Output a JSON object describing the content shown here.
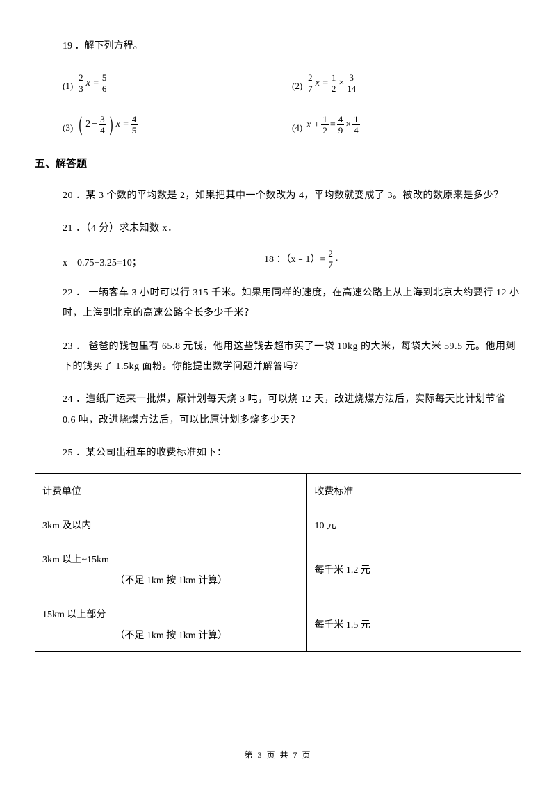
{
  "q19": {
    "label": "19 ．解下列方程。",
    "eq1": {
      "label": "(1)",
      "lhs_num": "2",
      "lhs_den": "3",
      "var": "x",
      "rhs_num": "5",
      "rhs_den": "6"
    },
    "eq2": {
      "label": "(2)",
      "lhs_num": "2",
      "lhs_den": "7",
      "var": "x",
      "mid_num": "1",
      "mid_den": "2",
      "rhs_num": "3",
      "rhs_den": "14"
    },
    "eq3": {
      "label": "(3)",
      "inner_a": "2",
      "inner_b_num": "3",
      "inner_b_den": "4",
      "var": "x",
      "rhs_num": "4",
      "rhs_den": "5"
    },
    "eq4": {
      "label": "(4)",
      "var": "x",
      "a_num": "1",
      "a_den": "2",
      "b_num": "4",
      "b_den": "9",
      "c_num": "1",
      "c_den": "4"
    }
  },
  "section5": "五、解答题",
  "q20": "20 ．某 3 个数的平均数是 2，如果把其中一个数改为 4，平均数就变成了 3。被改的数原来是多少？",
  "q21": {
    "label": "21 ．（4 分）求未知数 x．",
    "a": "x﹣0.75+3.25=10；",
    "b_left": "18 ：（x﹣1）=",
    "b_num": "2",
    "b_den": "7",
    "b_tail": "."
  },
  "q22": "22 ． 一辆客车 3 小时可以行 315 千米。如果用同样的速度，在高速公路上从上海到北京大约要行 12 小时，上海到北京的高速公路全长多少千米？",
  "q23": "23 ． 爸爸的钱包里有 65.8 元钱，他用这些钱去超市买了一袋 10kg 的大米，每袋大米 59.5 元。他用剩下的钱买了 1.5kg 面粉。你能提出数学问题并解答吗？",
  "q24": "24 ．造纸厂运来一批煤，原计划每天烧 3 吨，可以烧 12 天，改进烧煤方法后，实际每天比计划节省 0.6 吨，改进烧煤方法后，可以比原计划多烧多少天？",
  "q25": {
    "label": "25 ．某公司出租车的收费标准如下：",
    "head1": "计费单位",
    "head2": "收费标准",
    "r1c1": "3km 及以内",
    "r1c2": "10 元",
    "r2c1a": "3km 以上~15km",
    "r2c1b": "（不足 1km 按 1km 计算）",
    "r2c2": "每千米 1.2 元",
    "r3c1a": "15km 以上部分",
    "r3c1b": "（不足 1km 按 1km 计算）",
    "r3c2": "每千米 1.5 元"
  },
  "footer": "第 3 页 共 7 页"
}
